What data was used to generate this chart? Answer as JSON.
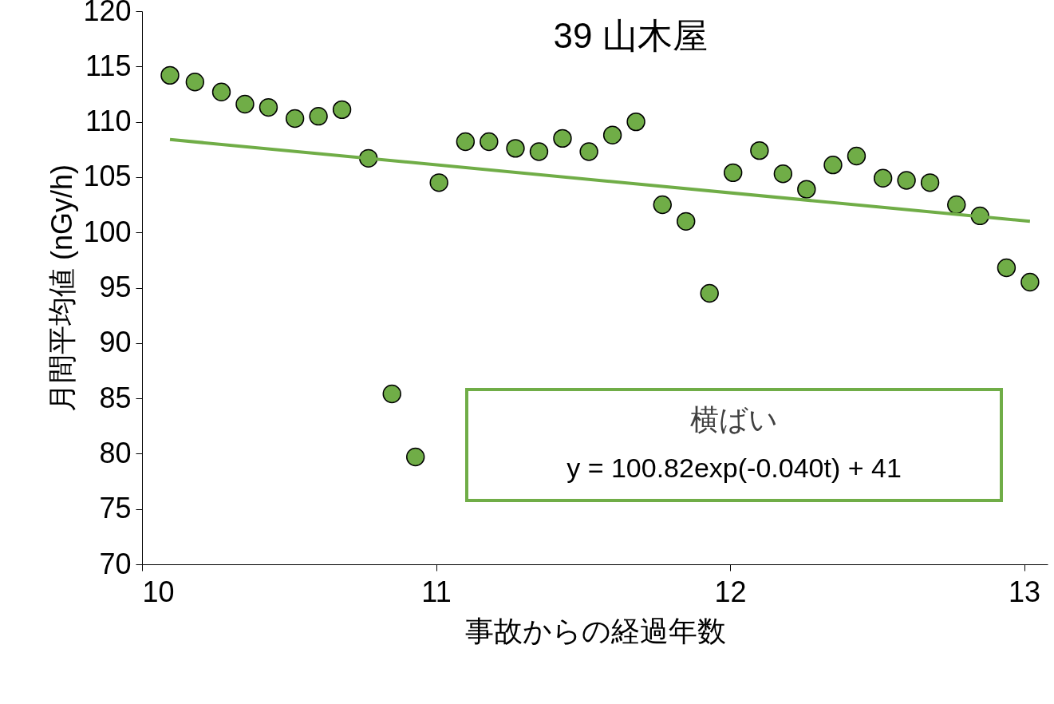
{
  "chart_data": {
    "type": "scatter",
    "title": "39 山木屋",
    "xlabel": "事故からの経過年数",
    "ylabel": "月間平均値 (nGy/h)",
    "xlim": [
      10,
      13.08
    ],
    "xticks": [
      10,
      11,
      12,
      13
    ],
    "ylim": [
      70,
      120
    ],
    "yticks": [
      70,
      75,
      80,
      85,
      90,
      95,
      100,
      105,
      110,
      115,
      120
    ],
    "grid": false,
    "line_style": "solid",
    "legend": false,
    "marker": "circle",
    "series": [
      {
        "type": "scatter",
        "color": "#70ad47",
        "x": [
          10.095,
          10.18,
          10.27,
          10.35,
          10.43,
          10.52,
          10.6,
          10.68,
          10.77,
          10.85,
          10.93,
          11.01,
          11.1,
          11.18,
          11.27,
          11.35,
          11.43,
          11.52,
          11.6,
          11.68,
          11.77,
          11.85,
          11.93,
          12.01,
          12.1,
          12.18,
          12.26,
          12.35,
          12.43,
          12.52,
          12.6,
          12.68,
          12.77,
          12.85,
          12.94,
          13.02
        ],
        "values": [
          114.2,
          113.6,
          112.7,
          111.6,
          111.3,
          110.3,
          110.5,
          111.1,
          106.7,
          85.4,
          79.7,
          104.5,
          108.2,
          108.2,
          107.6,
          107.3,
          108.5,
          107.3,
          108.8,
          110.0,
          102.5,
          101.0,
          94.5,
          105.4,
          107.4,
          105.3,
          103.9,
          106.1,
          106.9,
          104.9,
          104.7,
          104.5,
          102.5,
          101.5,
          96.8,
          95.5
        ]
      },
      {
        "type": "line",
        "marker": "none",
        "color": "#70ad47",
        "x": [
          10.095,
          13.02
        ],
        "values": [
          108.4,
          101.0
        ]
      }
    ],
    "annotations": [
      "横ばい",
      "y = 100.82exp(-0.040t) + 41"
    ]
  }
}
